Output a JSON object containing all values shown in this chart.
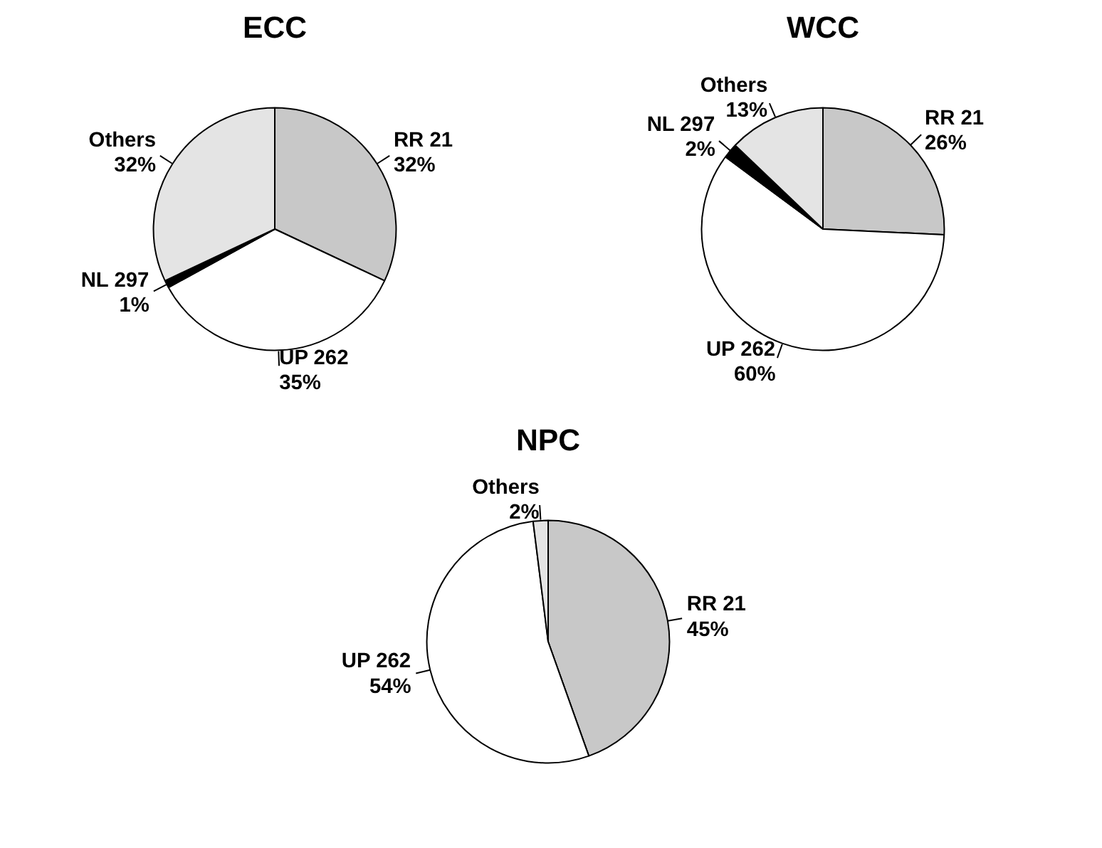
{
  "chart_data": [
    {
      "type": "pie",
      "title": "ECC",
      "categories": [
        "RR 21",
        "UP 262",
        "NL 297",
        "Others"
      ],
      "values": [
        32,
        35,
        1,
        32
      ],
      "colors": [
        "#c8c8c8",
        "#ffffff",
        "#000000",
        "#e4e4e4"
      ],
      "value_labels": [
        "32%",
        "35%",
        "1%",
        "32%"
      ]
    },
    {
      "type": "pie",
      "title": "WCC",
      "categories": [
        "RR 21",
        "UP 262",
        "NL 297",
        "Others"
      ],
      "values": [
        26,
        60,
        2,
        13
      ],
      "colors": [
        "#c8c8c8",
        "#ffffff",
        "#000000",
        "#e4e4e4"
      ],
      "value_labels": [
        "26%",
        "60%",
        "2%",
        "13%"
      ]
    },
    {
      "type": "pie",
      "title": "NPC",
      "categories": [
        "RR 21",
        "UP 262",
        "Others"
      ],
      "values": [
        45,
        54,
        2
      ],
      "colors": [
        "#c8c8c8",
        "#ffffff",
        "#e4e4e4"
      ],
      "value_labels": [
        "45%",
        "54%",
        "2%"
      ]
    }
  ]
}
